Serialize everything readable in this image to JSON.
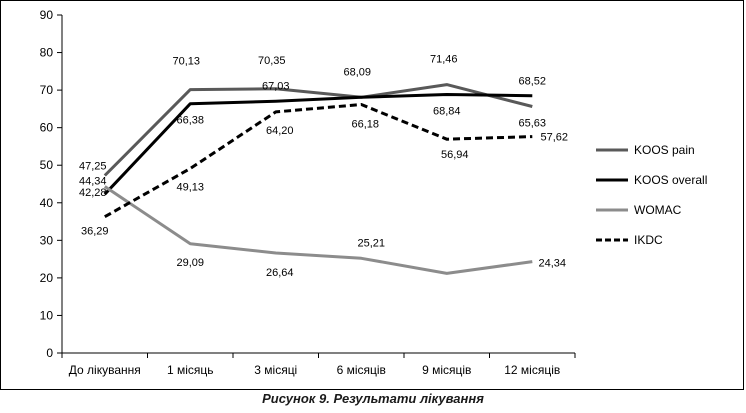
{
  "caption": "Рисунок 9. Результати лікування",
  "chart_data": {
    "type": "line",
    "title": "",
    "xlabel": "",
    "ylabel": "",
    "categories": [
      "До лікування",
      "1 місяць",
      "3 місяці",
      "6 місяців",
      "9 місяців",
      "12 місяців"
    ],
    "ylim": [
      0,
      90
    ],
    "yticks": [
      0,
      10,
      20,
      30,
      40,
      50,
      60,
      70,
      80,
      90
    ],
    "grid": false,
    "legend_position": "right",
    "series": [
      {
        "name": "KOOS pain",
        "values": [
          47.25,
          70.13,
          70.35,
          68.09,
          71.46,
          65.63
        ],
        "labels": [
          "47,25",
          "70,13",
          "70,35",
          "68,09",
          "71,46",
          "65,63"
        ],
        "color": "#595959",
        "dash": "solid"
      },
      {
        "name": "KOOS overall",
        "values": [
          42.28,
          66.38,
          67.03,
          68.09,
          68.84,
          68.52
        ],
        "labels": [
          "42,28",
          "66,38",
          "67,03",
          "",
          "68,84",
          "68,52"
        ],
        "color": "#000000",
        "dash": "solid"
      },
      {
        "name": "WOMAC",
        "values": [
          44.34,
          29.09,
          26.64,
          25.21,
          21.2,
          24.34
        ],
        "labels": [
          "44,34",
          "29,09",
          "26,64",
          "25,21",
          "",
          "24,34"
        ],
        "color": "#8c8c8c",
        "dash": "solid"
      },
      {
        "name": "IKDC",
        "values": [
          36.29,
          49.13,
          64.2,
          66.18,
          56.94,
          57.62
        ],
        "labels": [
          "36,29",
          "49,13",
          "64,20",
          "66,18",
          "56,94",
          "57,62"
        ],
        "color": "#000000",
        "dash": "dashed"
      }
    ]
  }
}
